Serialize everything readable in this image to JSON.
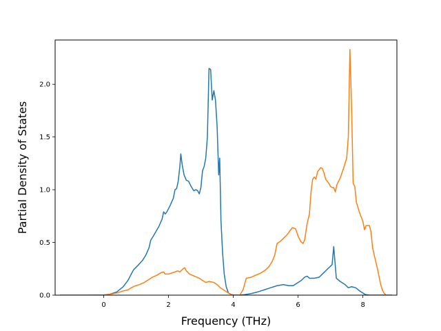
{
  "chart_data": {
    "type": "line",
    "title": "",
    "xlabel": "Frequency (THz)",
    "ylabel": "Partial Density of States",
    "xlim": [
      -1.5,
      9.05
    ],
    "ylim": [
      0,
      2.42
    ],
    "xticks": [
      0,
      2,
      4,
      6,
      8
    ],
    "yticks": [
      0.0,
      0.5,
      1.0,
      1.5,
      2.0
    ],
    "xtick_labels": [
      "0",
      "2",
      "4",
      "6",
      "8"
    ],
    "ytick_labels": [
      "0.0",
      "0.5",
      "1.0",
      "1.5",
      "2.0"
    ],
    "grid": false,
    "legend": "none",
    "series": [
      {
        "color": "#1f77b4",
        "points": [
          [
            -1.35,
            0
          ],
          [
            -0.5,
            0
          ],
          [
            0.0,
            0.002
          ],
          [
            0.2,
            0.01
          ],
          [
            0.4,
            0.03
          ],
          [
            0.6,
            0.08
          ],
          [
            0.75,
            0.14
          ],
          [
            0.85,
            0.2
          ],
          [
            0.92,
            0.24
          ],
          [
            1.05,
            0.28
          ],
          [
            1.2,
            0.33
          ],
          [
            1.3,
            0.38
          ],
          [
            1.4,
            0.45
          ],
          [
            1.45,
            0.52
          ],
          [
            1.55,
            0.57
          ],
          [
            1.7,
            0.65
          ],
          [
            1.8,
            0.72
          ],
          [
            1.85,
            0.79
          ],
          [
            1.9,
            0.77
          ],
          [
            1.95,
            0.79
          ],
          [
            2.05,
            0.85
          ],
          [
            2.15,
            0.92
          ],
          [
            2.2,
            1.0
          ],
          [
            2.25,
            1.01
          ],
          [
            2.3,
            1.08
          ],
          [
            2.35,
            1.22
          ],
          [
            2.38,
            1.34
          ],
          [
            2.42,
            1.24
          ],
          [
            2.48,
            1.14
          ],
          [
            2.55,
            1.09
          ],
          [
            2.62,
            1.08
          ],
          [
            2.7,
            1.03
          ],
          [
            2.78,
            0.99
          ],
          [
            2.85,
            1.0
          ],
          [
            2.9,
            0.99
          ],
          [
            2.95,
            0.96
          ],
          [
            3.0,
            1.02
          ],
          [
            3.05,
            1.18
          ],
          [
            3.1,
            1.22
          ],
          [
            3.15,
            1.3
          ],
          [
            3.2,
            1.5
          ],
          [
            3.25,
            2.15
          ],
          [
            3.3,
            2.14
          ],
          [
            3.35,
            1.85
          ],
          [
            3.4,
            1.94
          ],
          [
            3.45,
            1.85
          ],
          [
            3.5,
            1.6
          ],
          [
            3.55,
            1.14
          ],
          [
            3.58,
            1.3
          ],
          [
            3.62,
            0.7
          ],
          [
            3.67,
            0.4
          ],
          [
            3.72,
            0.2
          ],
          [
            3.78,
            0.08
          ],
          [
            3.85,
            0.02
          ],
          [
            3.95,
            0.005
          ],
          [
            4.05,
            0
          ],
          [
            4.2,
            0
          ],
          [
            4.35,
            0.005
          ],
          [
            4.55,
            0.015
          ],
          [
            4.75,
            0.03
          ],
          [
            4.95,
            0.05
          ],
          [
            5.15,
            0.07
          ],
          [
            5.35,
            0.09
          ],
          [
            5.55,
            0.1
          ],
          [
            5.7,
            0.09
          ],
          [
            5.85,
            0.09
          ],
          [
            5.95,
            0.11
          ],
          [
            6.1,
            0.14
          ],
          [
            6.2,
            0.17
          ],
          [
            6.28,
            0.18
          ],
          [
            6.35,
            0.16
          ],
          [
            6.5,
            0.16
          ],
          [
            6.65,
            0.17
          ],
          [
            6.75,
            0.2
          ],
          [
            6.85,
            0.23
          ],
          [
            6.95,
            0.26
          ],
          [
            7.05,
            0.29
          ],
          [
            7.1,
            0.46
          ],
          [
            7.18,
            0.16
          ],
          [
            7.3,
            0.13
          ],
          [
            7.45,
            0.1
          ],
          [
            7.55,
            0.07
          ],
          [
            7.65,
            0.08
          ],
          [
            7.78,
            0.07
          ],
          [
            7.9,
            0.04
          ],
          [
            8.0,
            0.02
          ],
          [
            8.08,
            0.005
          ],
          [
            8.2,
            0
          ],
          [
            8.9,
            0
          ]
        ]
      },
      {
        "color": "#ff7f0e",
        "points": [
          [
            -1.35,
            0
          ],
          [
            -0.5,
            0
          ],
          [
            0.0,
            0.002
          ],
          [
            0.2,
            0.008
          ],
          [
            0.4,
            0.02
          ],
          [
            0.6,
            0.04
          ],
          [
            0.75,
            0.05
          ],
          [
            0.85,
            0.07
          ],
          [
            0.95,
            0.085
          ],
          [
            1.1,
            0.1
          ],
          [
            1.25,
            0.12
          ],
          [
            1.4,
            0.15
          ],
          [
            1.5,
            0.17
          ],
          [
            1.65,
            0.19
          ],
          [
            1.75,
            0.21
          ],
          [
            1.85,
            0.22
          ],
          [
            1.9,
            0.2
          ],
          [
            2.0,
            0.2
          ],
          [
            2.1,
            0.21
          ],
          [
            2.2,
            0.22
          ],
          [
            2.28,
            0.23
          ],
          [
            2.35,
            0.22
          ],
          [
            2.45,
            0.25
          ],
          [
            2.5,
            0.26
          ],
          [
            2.55,
            0.23
          ],
          [
            2.65,
            0.2
          ],
          [
            2.8,
            0.18
          ],
          [
            2.95,
            0.16
          ],
          [
            3.05,
            0.14
          ],
          [
            3.15,
            0.12
          ],
          [
            3.25,
            0.13
          ],
          [
            3.4,
            0.12
          ],
          [
            3.5,
            0.1
          ],
          [
            3.6,
            0.07
          ],
          [
            3.7,
            0.05
          ],
          [
            3.8,
            0.03
          ],
          [
            3.9,
            0.01
          ],
          [
            4.0,
            0
          ],
          [
            4.2,
            0
          ],
          [
            4.3,
            0.05
          ],
          [
            4.4,
            0.16
          ],
          [
            4.55,
            0.17
          ],
          [
            4.7,
            0.19
          ],
          [
            4.85,
            0.21
          ],
          [
            5.0,
            0.24
          ],
          [
            5.1,
            0.27
          ],
          [
            5.2,
            0.32
          ],
          [
            5.28,
            0.38
          ],
          [
            5.35,
            0.49
          ],
          [
            5.45,
            0.51
          ],
          [
            5.55,
            0.54
          ],
          [
            5.65,
            0.57
          ],
          [
            5.75,
            0.61
          ],
          [
            5.82,
            0.64
          ],
          [
            5.92,
            0.63
          ],
          [
            6.0,
            0.56
          ],
          [
            6.08,
            0.51
          ],
          [
            6.15,
            0.49
          ],
          [
            6.2,
            0.52
          ],
          [
            6.28,
            0.68
          ],
          [
            6.35,
            0.77
          ],
          [
            6.4,
            0.98
          ],
          [
            6.45,
            1.1
          ],
          [
            6.5,
            1.12
          ],
          [
            6.55,
            1.1
          ],
          [
            6.6,
            1.17
          ],
          [
            6.65,
            1.19
          ],
          [
            6.7,
            1.21
          ],
          [
            6.75,
            1.2
          ],
          [
            6.8,
            1.16
          ],
          [
            6.85,
            1.1
          ],
          [
            6.95,
            1.06
          ],
          [
            7.0,
            1.03
          ],
          [
            7.05,
            1.02
          ],
          [
            7.1,
            1.02
          ],
          [
            7.15,
            0.98
          ],
          [
            7.2,
            1.05
          ],
          [
            7.3,
            1.11
          ],
          [
            7.4,
            1.2
          ],
          [
            7.5,
            1.3
          ],
          [
            7.55,
            1.5
          ],
          [
            7.6,
            2.33
          ],
          [
            7.65,
            1.8
          ],
          [
            7.7,
            1.06
          ],
          [
            7.75,
            1.03
          ],
          [
            7.8,
            0.88
          ],
          [
            7.9,
            0.78
          ],
          [
            8.0,
            0.7
          ],
          [
            8.05,
            0.62
          ],
          [
            8.1,
            0.66
          ],
          [
            8.2,
            0.66
          ],
          [
            8.25,
            0.6
          ],
          [
            8.3,
            0.45
          ],
          [
            8.35,
            0.38
          ],
          [
            8.45,
            0.25
          ],
          [
            8.55,
            0.1
          ],
          [
            8.6,
            0.05
          ],
          [
            8.65,
            0.02
          ],
          [
            8.72,
            0
          ],
          [
            8.9,
            0
          ]
        ]
      }
    ]
  }
}
